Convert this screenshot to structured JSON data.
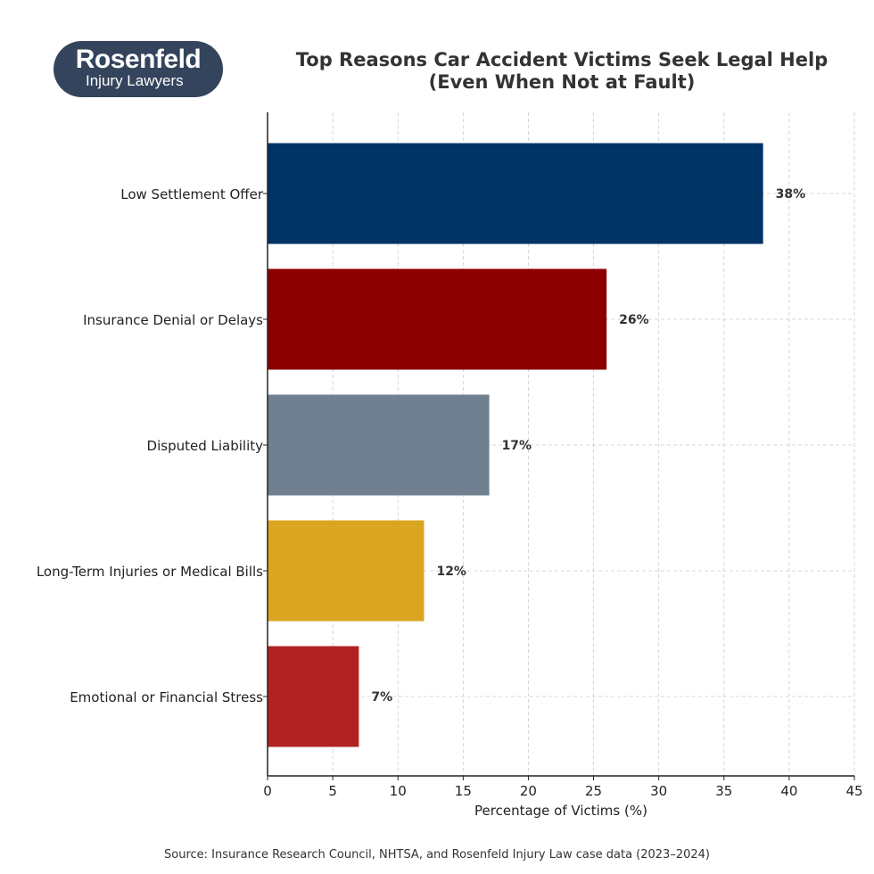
{
  "logo": {
    "line1": "Rosenfeld",
    "line2": "Injury Lawyers"
  },
  "chart_data": {
    "type": "bar",
    "orientation": "horizontal",
    "title": "Top Reasons Car Accident Victims Seek Legal Help",
    "subtitle": "(Even When Not at Fault)",
    "categories": [
      "Low Settlement Offer",
      "Insurance Denial or Delays",
      "Disputed Liability",
      "Long-Term Injuries or Medical Bills",
      "Emotional or Financial Stress"
    ],
    "values": [
      38,
      26,
      17,
      12,
      7
    ],
    "data_labels": [
      "38%",
      "26%",
      "17%",
      "12%",
      "7%"
    ],
    "colors": [
      "#003366",
      "#8b0000",
      "#708090",
      "#daa520",
      "#b22222"
    ],
    "xlabel": "Percentage of Victims (%)",
    "ylabel": "",
    "xlim": [
      0,
      45
    ],
    "xticks": [
      "0",
      "5",
      "10",
      "15",
      "20",
      "25",
      "30",
      "35",
      "40",
      "45"
    ],
    "grid": true,
    "source": "Source: Insurance Research Council, NHTSA, and Rosenfeld Injury Law case data (2023–2024)"
  }
}
